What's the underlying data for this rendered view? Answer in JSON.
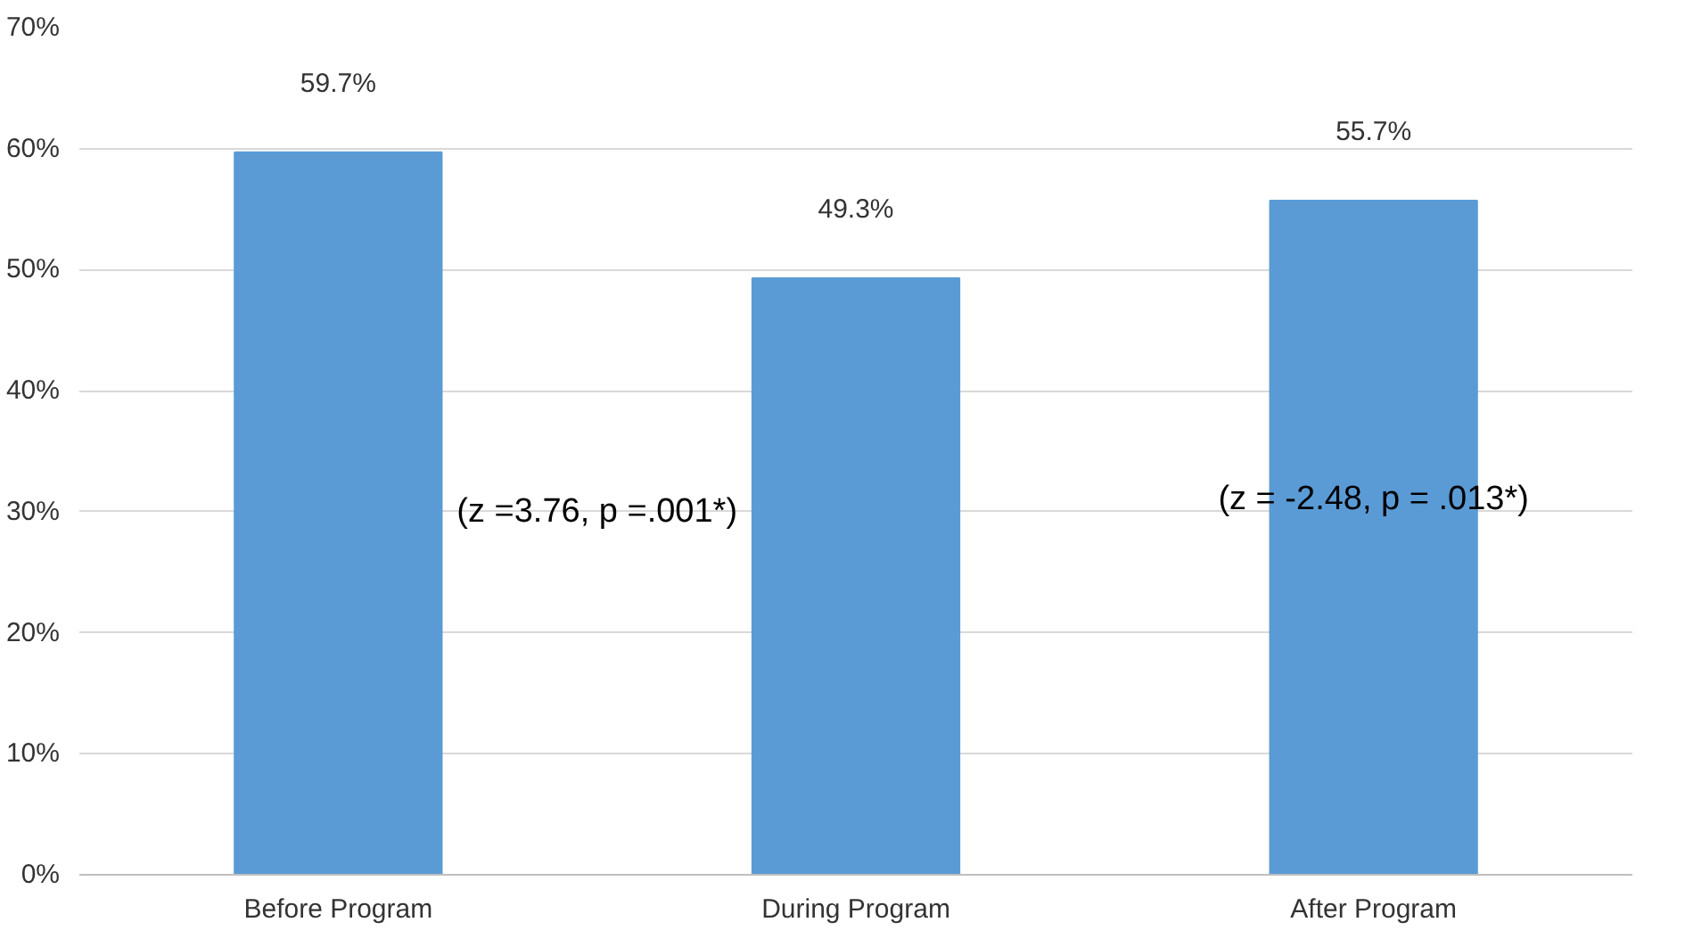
{
  "chart_data": {
    "type": "bar",
    "categories": [
      "Before Program",
      "During Program",
      "After Program"
    ],
    "values": [
      59.7,
      49.3,
      55.7
    ],
    "color": "#5b9bd5",
    "data_labels": true,
    "value_labels": [
      "59.7%",
      "49.3%",
      "55.7%"
    ],
    "ylim": [
      0,
      70
    ],
    "yticks": [
      {
        "value": 0,
        "label": "0%"
      },
      {
        "value": 10,
        "label": "10%"
      },
      {
        "value": 20,
        "label": "20%"
      },
      {
        "value": 30,
        "label": "30%"
      },
      {
        "value": 40,
        "label": "40%"
      },
      {
        "value": 50,
        "label": "50%"
      },
      {
        "value": 60,
        "label": "60%"
      },
      {
        "value": 70,
        "label": "70%"
      }
    ],
    "grid": "y",
    "annotations": [
      "(z =3.76, p =.001*)",
      "(z = -2.48, p = .013*)"
    ]
  }
}
